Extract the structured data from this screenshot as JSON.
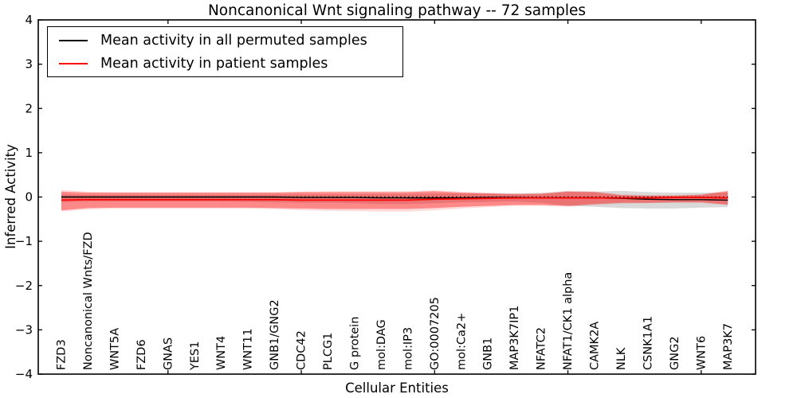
{
  "chart_data": {
    "type": "line",
    "title": "Noncanonical Wnt signaling pathway -- 72 samples",
    "xlabel": "Cellular Entities",
    "ylabel": "Inferred Activity",
    "ylim": [
      -4,
      4
    ],
    "ytick_labels": [
      "4",
      "3",
      "2",
      "1",
      "0",
      "−1",
      "−2",
      "−3",
      "−4"
    ],
    "xtick_entity_indices": [
      4,
      9,
      14,
      19,
      24
    ],
    "grid": false,
    "categories": [
      "FZD3",
      "Noncanonical Wnts/FZD",
      "WNT5A",
      "FZD6",
      "GNAS",
      "YES1",
      "WNT4",
      "WNT11",
      "GNB1/GNG2",
      "CDC42",
      "PLCG1",
      "G protein",
      "mol:DAG",
      "mol:IP3",
      "GO:0007205",
      "mol:Ca2+",
      "GNB1",
      "MAP3K7IP1",
      "NFATC2",
      "NFAT1/CK1 alpha",
      "CAMK2A",
      "NLK",
      "CSNK1A1",
      "GNG2",
      "WNT6",
      "MAP3K7"
    ],
    "legend": {
      "position": "upper left",
      "entries": [
        {
          "label": "Mean activity in all permuted samples",
          "color": "#000000"
        },
        {
          "label": "Mean activity in patient samples",
          "color": "#ff0000"
        }
      ]
    },
    "zero_line": {
      "value": 0,
      "style": "dotted",
      "color": "#000000"
    },
    "series": [
      {
        "name": "Mean activity in all permuted samples",
        "color": "#000000",
        "style": "solid",
        "width": 1.4,
        "values": [
          0,
          0,
          0,
          0,
          0,
          0,
          0,
          0,
          0,
          -0.01,
          -0.01,
          -0.01,
          -0.02,
          -0.02,
          -0.02,
          -0.02,
          -0.01,
          -0.01,
          -0.02,
          -0.02,
          -0.02,
          -0.03,
          -0.05,
          -0.06,
          -0.06,
          -0.07
        ]
      },
      {
        "name": "Mean activity in patient samples",
        "color": "#ff0000",
        "style": "solid",
        "width": 1.8,
        "values": [
          -0.07,
          -0.06,
          -0.06,
          -0.06,
          -0.06,
          -0.06,
          -0.06,
          -0.06,
          -0.06,
          -0.07,
          -0.07,
          -0.07,
          -0.07,
          -0.07,
          -0.05,
          -0.04,
          -0.03,
          -0.02,
          -0.02,
          -0.02,
          -0.02,
          -0.02,
          -0.02,
          -0.01,
          -0.01,
          -0.02
        ]
      }
    ],
    "bands": [
      {
        "name": "permuted-samples-band",
        "color": "#787878",
        "opacity": 0.28,
        "upper": [
          0.06,
          0.05,
          0.05,
          0.05,
          0.05,
          0.05,
          0.05,
          0.05,
          0.06,
          0.06,
          0.06,
          0.06,
          0.07,
          0.07,
          0.08,
          0.08,
          0.08,
          0.08,
          0.09,
          0.13,
          0.12,
          0.14,
          0.11,
          0.1,
          0.1,
          0.1
        ],
        "lower": [
          -0.12,
          -0.1,
          -0.1,
          -0.1,
          -0.1,
          -0.1,
          -0.1,
          -0.11,
          -0.12,
          -0.13,
          -0.13,
          -0.14,
          -0.16,
          -0.16,
          -0.14,
          -0.12,
          -0.11,
          -0.1,
          -0.13,
          -0.2,
          -0.22,
          -0.25,
          -0.26,
          -0.26,
          -0.24,
          -0.23
        ]
      },
      {
        "name": "patient-samples-band-outer",
        "color": "#ff0000",
        "opacity": 0.14,
        "upper": [
          0.16,
          0.12,
          0.11,
          0.11,
          0.11,
          0.11,
          0.11,
          0.11,
          0.11,
          0.12,
          0.13,
          0.13,
          0.13,
          0.13,
          0.15,
          0.12,
          0.1,
          0.08,
          0.09,
          0.14,
          0.13,
          0.06,
          0.04,
          0.04,
          0.06,
          0.15
        ],
        "lower": [
          -0.33,
          -0.28,
          -0.26,
          -0.26,
          -0.26,
          -0.26,
          -0.26,
          -0.26,
          -0.27,
          -0.3,
          -0.31,
          -0.32,
          -0.33,
          -0.33,
          -0.3,
          -0.26,
          -0.23,
          -0.2,
          -0.2,
          -0.22,
          -0.18,
          -0.15,
          -0.14,
          -0.13,
          -0.13,
          -0.18
        ]
      },
      {
        "name": "patient-samples-band",
        "color": "#ff0000",
        "opacity": 0.38,
        "upper": [
          0.12,
          0.1,
          0.1,
          0.1,
          0.1,
          0.1,
          0.1,
          0.1,
          0.1,
          0.11,
          0.11,
          0.11,
          0.11,
          0.11,
          0.13,
          0.1,
          0.08,
          0.06,
          0.07,
          0.12,
          0.11,
          0.04,
          0.03,
          0.03,
          0.05,
          0.13
        ],
        "lower": [
          -0.3,
          -0.25,
          -0.24,
          -0.24,
          -0.24,
          -0.24,
          -0.24,
          -0.24,
          -0.25,
          -0.26,
          -0.27,
          -0.27,
          -0.27,
          -0.27,
          -0.25,
          -0.22,
          -0.2,
          -0.18,
          -0.18,
          -0.2,
          -0.16,
          -0.13,
          -0.13,
          -0.12,
          -0.12,
          -0.17
        ]
      }
    ]
  }
}
